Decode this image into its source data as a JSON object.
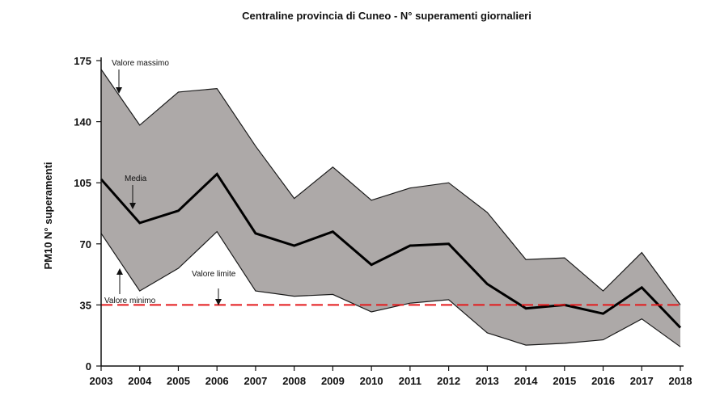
{
  "chart_data": {
    "type": "area",
    "title": "Centraline provincia di Cuneo - N° superamenti giornalieri",
    "xlabel": "",
    "ylabel": "PM10 N° superamenti",
    "x": [
      2003,
      2004,
      2005,
      2006,
      2007,
      2008,
      2009,
      2010,
      2011,
      2012,
      2013,
      2014,
      2015,
      2016,
      2017,
      2018
    ],
    "ylim": [
      0,
      175
    ],
    "yticks": [
      0,
      35,
      70,
      105,
      140,
      175
    ],
    "series": [
      {
        "name": "Valore massimo",
        "values": [
          170,
          138,
          157,
          159,
          126,
          96,
          114,
          95,
          102,
          105,
          88,
          61,
          62,
          43,
          65,
          35
        ]
      },
      {
        "name": "Media",
        "values": [
          107,
          82,
          89,
          110,
          76,
          69,
          77,
          58,
          69,
          70,
          47,
          33,
          35,
          30,
          45,
          22
        ]
      },
      {
        "name": "Valore minimo",
        "values": [
          76,
          43,
          56,
          77,
          43,
          40,
          41,
          31,
          36,
          38,
          19,
          12,
          13,
          15,
          27,
          11
        ]
      }
    ],
    "reference_line": {
      "name": "Valore limite",
      "value": 35,
      "color": "#e41a1c"
    },
    "annotations": [
      "Valore massimo",
      "Media",
      "Valore limite",
      "Valore minimo"
    ],
    "colors": {
      "band": "#ada9a8",
      "mean": "#000000",
      "edge": "#1a1a1a"
    }
  }
}
